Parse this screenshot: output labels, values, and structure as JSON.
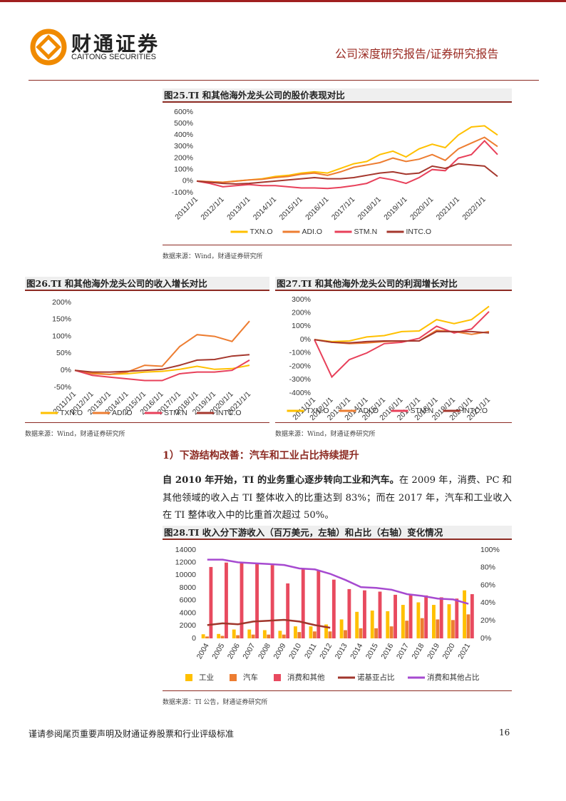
{
  "header": {
    "logo_cn": "财通证券",
    "logo_en": "CAITONG SECURITIES",
    "report_type": "公司深度研究报告/证券研究报告"
  },
  "chart_data": [
    {
      "type": "line",
      "title": "图25.TI 和其他海外龙头公司的股价表现对比",
      "source": "数据来源：Wind，财通证券研究所",
      "categories": [
        "2011/1/1",
        null,
        "2012/1/1",
        null,
        "2013/1/1",
        null,
        "2014/1/1",
        null,
        "2015/1/1",
        null,
        "2016/1/1",
        null,
        "2017/1/1",
        null,
        "2018/1/1",
        null,
        "2019/1/1",
        null,
        "2020/1/1",
        null,
        "2021/1/1",
        null,
        "2022/1/1",
        null
      ],
      "ylim": [
        -100,
        600
      ],
      "yticks": [
        {
          "value": -100,
          "label": "-100%"
        },
        {
          "value": 0,
          "label": "0%"
        },
        {
          "value": 100,
          "label": "100%"
        },
        {
          "value": 200,
          "label": "200%"
        },
        {
          "value": 300,
          "label": "300%"
        },
        {
          "value": 400,
          "label": "400%"
        },
        {
          "value": 500,
          "label": "500%"
        },
        {
          "value": 600,
          "label": "600%"
        }
      ],
      "series": [
        {
          "name": "TXN.O",
          "color": "#FFC000",
          "values": [
            0,
            -5,
            -10,
            0,
            10,
            20,
            40,
            50,
            70,
            80,
            70,
            110,
            150,
            170,
            230,
            260,
            210,
            280,
            320,
            290,
            400,
            470,
            480,
            400
          ]
        },
        {
          "name": "ADI.O",
          "color": "#ED7D31",
          "values": [
            0,
            -5,
            -10,
            0,
            10,
            15,
            30,
            40,
            60,
            70,
            50,
            80,
            120,
            140,
            160,
            200,
            170,
            190,
            230,
            180,
            280,
            330,
            380,
            300
          ]
        },
        {
          "name": "STM.N",
          "color": "#E8405A",
          "values": [
            0,
            -20,
            -50,
            -40,
            -30,
            -40,
            -40,
            -50,
            -60,
            -60,
            -65,
            -55,
            -40,
            -20,
            30,
            10,
            -20,
            30,
            100,
            90,
            200,
            230,
            350,
            230
          ]
        },
        {
          "name": "INTC.O",
          "color": "#A5372D",
          "values": [
            0,
            -10,
            -20,
            -25,
            -20,
            -10,
            0,
            10,
            20,
            30,
            20,
            20,
            30,
            50,
            70,
            80,
            60,
            70,
            130,
            110,
            150,
            140,
            130,
            40
          ]
        }
      ]
    },
    {
      "type": "line",
      "title": "图26.TI 和其他海外龙头公司的收入增长对比",
      "source": "数据来源：Wind，财通证券研究所",
      "categories": [
        "2011/1/1",
        "2012/1/1",
        "2013/1/1",
        "2014/1/1",
        "2015/1/1",
        "2016/1/1",
        "2017/1/1",
        "2018/1/1",
        "2019/1/1",
        "2020/1/1",
        "2021/1/1"
      ],
      "ylim": [
        -50,
        200
      ],
      "yticks": [
        {
          "value": -50,
          "label": "-50%"
        },
        {
          "value": 0,
          "label": "0%"
        },
        {
          "value": 50,
          "label": "50%"
        },
        {
          "value": 100,
          "label": "100%"
        },
        {
          "value": 150,
          "label": "150%"
        },
        {
          "value": 200,
          "label": "200%"
        }
      ],
      "series": [
        {
          "name": "TXN.O",
          "color": "#FFC000",
          "values": [
            0,
            -8,
            -12,
            -10,
            -5,
            -3,
            3,
            12,
            3,
            5,
            15
          ]
        },
        {
          "name": "ADI.O",
          "color": "#ED7D31",
          "values": [
            0,
            -10,
            -12,
            -5,
            15,
            12,
            70,
            105,
            100,
            85,
            145
          ]
        },
        {
          "name": "STM.N",
          "color": "#E8405A",
          "values": [
            0,
            -15,
            -20,
            -25,
            -30,
            -30,
            -10,
            -5,
            -5,
            0,
            30
          ]
        },
        {
          "name": "INTC.O",
          "color": "#A5372D",
          "values": [
            0,
            -5,
            -5,
            -3,
            0,
            3,
            15,
            30,
            32,
            42,
            46
          ]
        }
      ]
    },
    {
      "type": "line",
      "title": "图27.TI 和其他海外龙头公司的利润增长对比",
      "source": "数据来源：Wind，财通证券研究所",
      "categories": [
        "2011/1/1",
        "2012/1/1",
        "2013/1/1",
        "2014/1/1",
        "2015/1/1",
        "2016/1/1",
        "2017/1/1",
        "2018/1/1",
        "2019/1/1",
        "2020/1/1",
        "2021/1/1"
      ],
      "ylim": [
        -400,
        300
      ],
      "yticks": [
        {
          "value": -400,
          "label": "-400%"
        },
        {
          "value": -300,
          "label": "-300%"
        },
        {
          "value": -200,
          "label": "-200%"
        },
        {
          "value": -100,
          "label": "-100%"
        },
        {
          "value": 0,
          "label": "0%"
        },
        {
          "value": 100,
          "label": "100%"
        },
        {
          "value": 200,
          "label": "200%"
        },
        {
          "value": 300,
          "label": "300%"
        }
      ],
      "series": [
        {
          "name": "TXN.O",
          "color": "#FFC000",
          "values": [
            0,
            -15,
            -10,
            20,
            30,
            60,
            65,
            150,
            120,
            150,
            250
          ]
        },
        {
          "name": "ADI.O",
          "color": "#ED7D31",
          "values": [
            0,
            -20,
            -30,
            -25,
            -15,
            -10,
            -10,
            70,
            60,
            40,
            60
          ]
        },
        {
          "name": "STM.N",
          "color": "#E8405A",
          "values": [
            0,
            -280,
            -150,
            -100,
            -30,
            -20,
            10,
            100,
            50,
            80,
            210
          ]
        },
        {
          "name": "INTC.O",
          "color": "#A5372D",
          "values": [
            0,
            -20,
            -25,
            -15,
            -10,
            -10,
            -10,
            60,
            60,
            60,
            50
          ]
        }
      ]
    },
    {
      "type": "combo",
      "title": "图28.TI 收入分下游收入（百万美元，左轴）和占比（右轴）变化情况",
      "source": "数据来源：TI 公告，财通证券研究所",
      "categories": [
        "2004",
        "2005",
        "2006",
        "2007",
        "2008",
        "2009",
        "2010",
        "2011",
        "2012",
        "2013",
        "2014",
        "2015",
        "2016",
        "2017",
        "2018",
        "2019",
        "2020",
        "2021"
      ],
      "ylim": [
        0,
        14000
      ],
      "yticks": [
        0,
        2000,
        4000,
        6000,
        8000,
        10000,
        12000,
        14000
      ],
      "y2lim": [
        0,
        100
      ],
      "y2ticks": [
        {
          "value": 0,
          "label": "0%"
        },
        {
          "value": 20,
          "label": "20%"
        },
        {
          "value": 40,
          "label": "40%"
        },
        {
          "value": 60,
          "label": "60%"
        },
        {
          "value": 80,
          "label": "80%"
        },
        {
          "value": 100,
          "label": "100%"
        }
      ],
      "series": [
        {
          "name": "工业",
          "color": "#FFC000",
          "mark": "bar",
          "values": [
            650,
            700,
            1400,
            1400,
            1300,
            1200,
            1900,
            1900,
            2200,
            3000,
            4200,
            4400,
            4300,
            5300,
            5700,
            5300,
            5400,
            7600
          ]
        },
        {
          "name": "汽车",
          "color": "#ED7D31",
          "mark": "bar",
          "values": [
            300,
            400,
            500,
            600,
            600,
            600,
            1000,
            1100,
            1100,
            1300,
            1600,
            1600,
            1900,
            2800,
            3200,
            3000,
            2900,
            3800
          ]
        },
        {
          "name": "消费和其他",
          "color": "#E84A5F",
          "mark": "bar",
          "values": [
            11300,
            12000,
            12100,
            11900,
            11600,
            8700,
            10900,
            10700,
            9300,
            7800,
            7600,
            7400,
            6900,
            6900,
            6800,
            6500,
            6300,
            7000
          ]
        },
        {
          "name": "诺基亚占比",
          "color": "#A0362C",
          "mark": "line",
          "axis": "y2",
          "values": [
            15,
            17,
            16,
            19,
            20,
            21,
            19,
            15,
            12,
            null,
            null,
            null,
            null,
            null,
            null,
            null,
            null,
            null
          ]
        },
        {
          "name": "消费和其他占比",
          "color": "#A64AD0",
          "mark": "line",
          "axis": "y2",
          "values": [
            89,
            89,
            86,
            85,
            84,
            83,
            79,
            78,
            73,
            66,
            58,
            57,
            55,
            50,
            48,
            45,
            44,
            39
          ]
        }
      ]
    }
  ],
  "section": {
    "heading": "1）下游结构改善：汽车和工业占比持续提升",
    "paragraph_bold": "自 2010 年开始，TI 的业务重心逐步转向工业和汽车。",
    "paragraph_text": "在 2009 年，消费、PC 和其他领域的收入占 TI 整体收入的比重达到 83%；而在 2017 年，汽车和工业收入在 TI 整体收入中的比重首次超过 50%。"
  },
  "footer": {
    "disclaimer": "谨请参阅尾页重要声明及财通证券股票和行业评级标准",
    "page": "16"
  }
}
